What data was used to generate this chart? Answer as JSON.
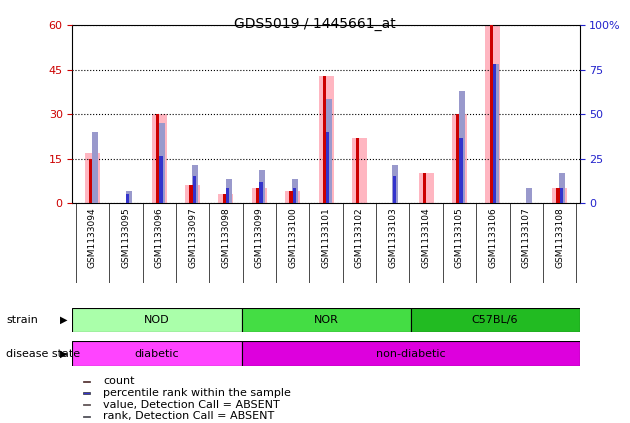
{
  "title": "GDS5019 / 1445661_at",
  "samples": [
    "GSM1133094",
    "GSM1133095",
    "GSM1133096",
    "GSM1133097",
    "GSM1133098",
    "GSM1133099",
    "GSM1133100",
    "GSM1133101",
    "GSM1133102",
    "GSM1133103",
    "GSM1133104",
    "GSM1133105",
    "GSM1133106",
    "GSM1133107",
    "GSM1133108"
  ],
  "absent_value": [
    17,
    0,
    30,
    6,
    3,
    5,
    4,
    43,
    22,
    0,
    10,
    30,
    60,
    0,
    5
  ],
  "absent_rank": [
    24,
    4,
    27,
    13,
    8,
    11,
    8,
    35,
    0,
    13,
    0,
    38,
    47,
    5,
    10
  ],
  "count": [
    15,
    0,
    30,
    6,
    3,
    5,
    4,
    43,
    22,
    0,
    10,
    30,
    60,
    0,
    5
  ],
  "percentile": [
    0,
    3,
    16,
    9,
    5,
    7,
    5,
    24,
    0,
    9,
    0,
    22,
    47,
    0,
    5
  ],
  "ylim_left": [
    0,
    60
  ],
  "ylim_right": [
    0,
    100
  ],
  "yticks_left": [
    0,
    15,
    30,
    45,
    60
  ],
  "yticks_right": [
    0,
    25,
    50,
    75,
    100
  ],
  "ytick_labels_right": [
    "0",
    "25",
    "50",
    "75",
    "100%"
  ],
  "strain_groups": [
    {
      "label": "NOD",
      "start": 0,
      "end": 5,
      "color": "#AAFFAA"
    },
    {
      "label": "NOR",
      "start": 5,
      "end": 10,
      "color": "#44DD44"
    },
    {
      "label": "C57BL/6",
      "start": 10,
      "end": 15,
      "color": "#22BB22"
    }
  ],
  "disease_groups": [
    {
      "label": "diabetic",
      "start": 0,
      "end": 5,
      "color": "#FF44FF"
    },
    {
      "label": "non-diabetic",
      "start": 5,
      "end": 15,
      "color": "#DD00DD"
    }
  ],
  "count_color": "#CC0000",
  "percentile_color": "#3333CC",
  "absent_value_color": "#FFB6C1",
  "absent_rank_color": "#9999CC",
  "plot_bg_color": "#FFFFFF",
  "xtick_bg_color": "#C8C8C8",
  "left_axis_color": "#CC0000",
  "right_axis_color": "#2222CC",
  "grid_color": "#000000",
  "legend_items": [
    {
      "color": "#CC0000",
      "label": "count"
    },
    {
      "color": "#3333CC",
      "label": "percentile rank within the sample"
    },
    {
      "color": "#FFB6C1",
      "label": "value, Detection Call = ABSENT"
    },
    {
      "color": "#9999CC",
      "label": "rank, Detection Call = ABSENT"
    }
  ]
}
